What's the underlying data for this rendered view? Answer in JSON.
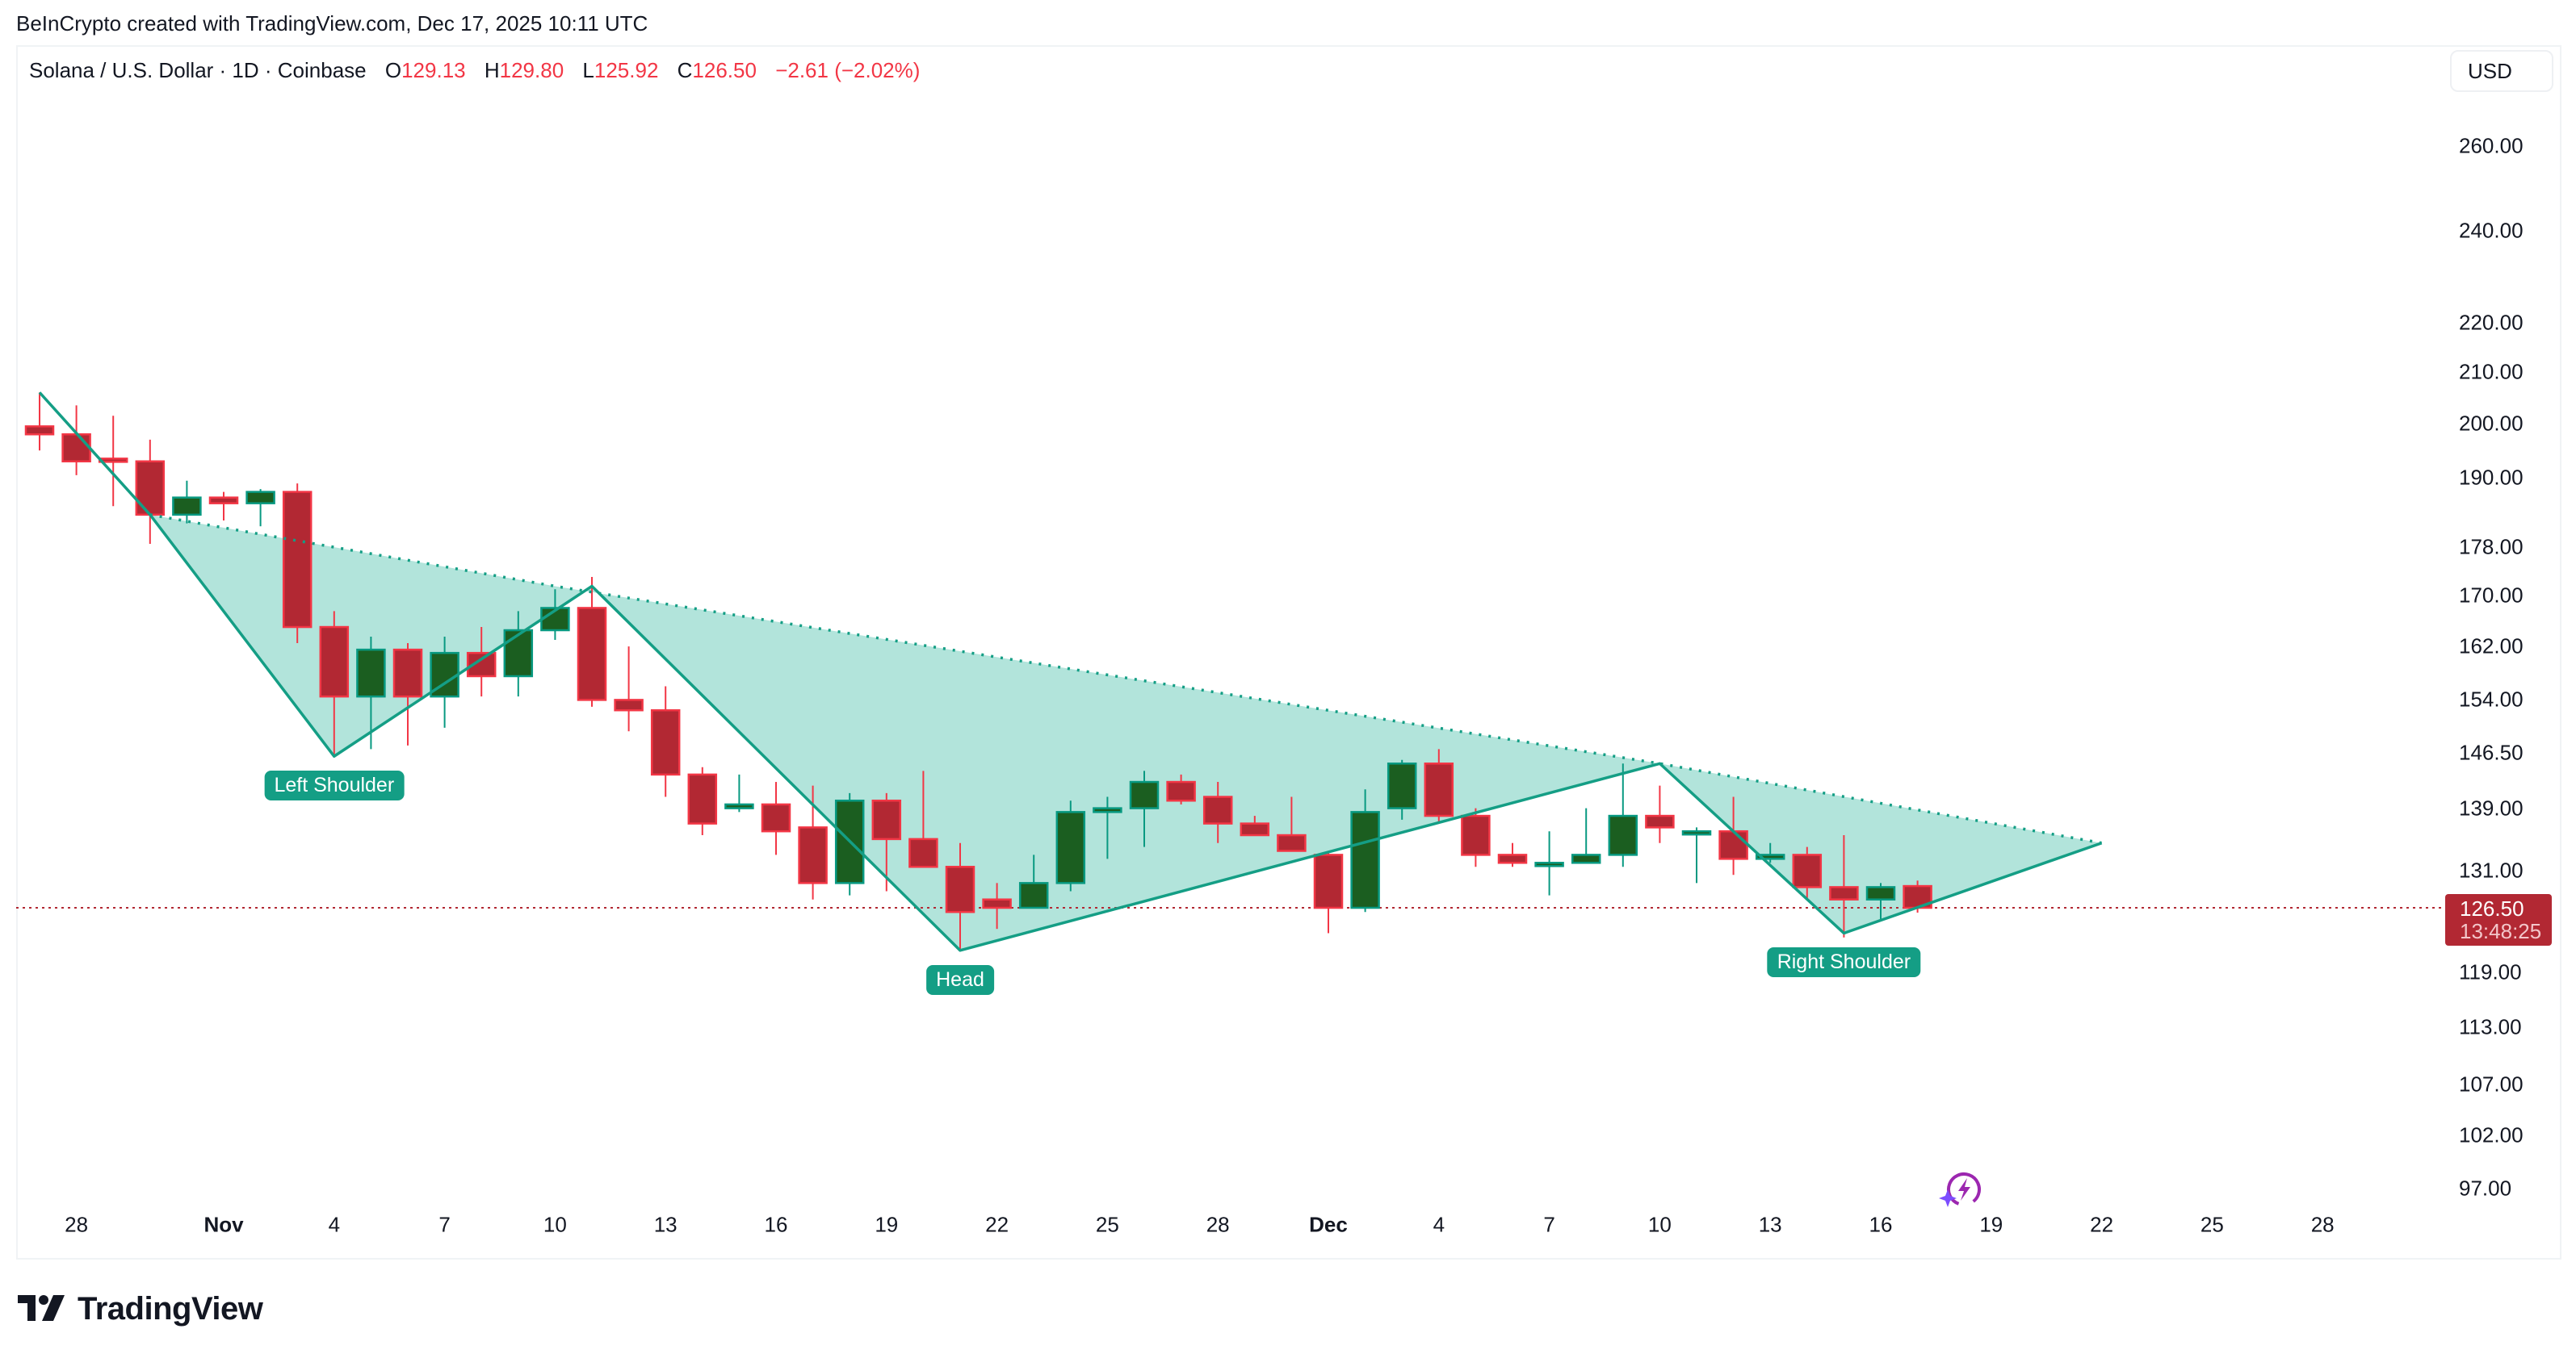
{
  "credit": "BeInCrypto created with TradingView.com, Dec 17, 2025 10:11 UTC",
  "legend": {
    "symbol": "Solana / U.S. Dollar · 1D · Coinbase",
    "o_label": "O",
    "o_value": "129.13",
    "h_label": "H",
    "h_value": "129.80",
    "l_label": "L",
    "l_value": "125.92",
    "c_label": "C",
    "c_value": "126.50",
    "change": "−2.61 (−2.02%)"
  },
  "currency_button": "USD",
  "current_price": {
    "value": "126.50",
    "countdown": "13:48:25"
  },
  "pattern_labels": {
    "left_shoulder": "Left Shoulder",
    "head": "Head",
    "right_shoulder": "Right Shoulder"
  },
  "brand": {
    "name": "TradingView"
  },
  "icons": {
    "watermark": "lightning-sparkle-icon",
    "logo": "tradingview-logo-icon"
  },
  "colors": {
    "up_body": "#1b5e20",
    "up_border": "#089981",
    "down_body": "#b22833",
    "down_border": "#f23645",
    "pattern_fill": "#b2e4db",
    "pattern_line": "#149e85",
    "current_price_line": "#b22833"
  },
  "chart_data": {
    "type": "candlestick",
    "title": "Solana / U.S. Dollar · 1D · Coinbase",
    "xlabel": "",
    "ylabel": "USD",
    "scale": "log",
    "ylim": [
      94,
      275
    ],
    "y_ticks": [
      "260.00",
      "240.00",
      "220.00",
      "210.00",
      "200.00",
      "190.00",
      "178.00",
      "170.00",
      "162.00",
      "154.00",
      "146.50",
      "139.00",
      "131.00",
      "119.00",
      "113.00",
      "107.00",
      "102.00",
      "97.00"
    ],
    "x_ticks": [
      {
        "label": "28",
        "index": 1
      },
      {
        "label": "Nov",
        "index": 5,
        "bold": true
      },
      {
        "label": "4",
        "index": 8
      },
      {
        "label": "7",
        "index": 11
      },
      {
        "label": "10",
        "index": 14
      },
      {
        "label": "13",
        "index": 17
      },
      {
        "label": "16",
        "index": 20
      },
      {
        "label": "19",
        "index": 23
      },
      {
        "label": "22",
        "index": 26
      },
      {
        "label": "25",
        "index": 29
      },
      {
        "label": "28",
        "index": 32
      },
      {
        "label": "Dec",
        "index": 35,
        "bold": true
      },
      {
        "label": "4",
        "index": 38
      },
      {
        "label": "7",
        "index": 41
      },
      {
        "label": "10",
        "index": 44
      },
      {
        "label": "13",
        "index": 47
      },
      {
        "label": "16",
        "index": 50
      },
      {
        "label": "19",
        "index": 53
      },
      {
        "label": "22",
        "index": 56
      },
      {
        "label": "25",
        "index": 59
      },
      {
        "label": "28",
        "index": 62
      }
    ],
    "candles": [
      {
        "date": "Oct 27",
        "o": 199.5,
        "h": 206.0,
        "l": 195.0,
        "c": 198.0
      },
      {
        "date": "Oct 28",
        "o": 198.0,
        "h": 203.5,
        "l": 190.5,
        "c": 193.0
      },
      {
        "date": "Oct 29",
        "o": 193.5,
        "h": 201.5,
        "l": 185.0,
        "c": 193.0
      },
      {
        "date": "Oct 30",
        "o": 193.0,
        "h": 197.0,
        "l": 178.5,
        "c": 183.5
      },
      {
        "date": "Oct 31",
        "o": 183.5,
        "h": 189.5,
        "l": 182.0,
        "c": 186.5
      },
      {
        "date": "Nov 1",
        "o": 186.5,
        "h": 187.5,
        "l": 182.5,
        "c": 185.5
      },
      {
        "date": "Nov 2",
        "o": 185.5,
        "h": 188.0,
        "l": 181.5,
        "c": 187.5
      },
      {
        "date": "Nov 3",
        "o": 187.5,
        "h": 189.0,
        "l": 162.5,
        "c": 165.0
      },
      {
        "date": "Nov 4",
        "o": 165.0,
        "h": 167.5,
        "l": 146.0,
        "c": 154.5
      },
      {
        "date": "Nov 5",
        "o": 154.5,
        "h": 163.5,
        "l": 147.0,
        "c": 161.5
      },
      {
        "date": "Nov 6",
        "o": 161.5,
        "h": 162.5,
        "l": 147.5,
        "c": 154.5
      },
      {
        "date": "Nov 7",
        "o": 154.5,
        "h": 163.5,
        "l": 150.0,
        "c": 161.0
      },
      {
        "date": "Nov 8",
        "o": 161.0,
        "h": 165.0,
        "l": 154.5,
        "c": 157.5
      },
      {
        "date": "Nov 9",
        "o": 157.5,
        "h": 167.5,
        "l": 154.5,
        "c": 164.5
      },
      {
        "date": "Nov 10",
        "o": 164.5,
        "h": 171.0,
        "l": 163.0,
        "c": 168.0
      },
      {
        "date": "Nov 11",
        "o": 168.0,
        "h": 173.0,
        "l": 153.0,
        "c": 154.0
      },
      {
        "date": "Nov 12",
        "o": 154.0,
        "h": 162.0,
        "l": 149.5,
        "c": 152.5
      },
      {
        "date": "Nov 13",
        "o": 152.5,
        "h": 156.0,
        "l": 140.5,
        "c": 143.5
      },
      {
        "date": "Nov 14",
        "o": 143.5,
        "h": 144.5,
        "l": 135.5,
        "c": 137.0
      },
      {
        "date": "Nov 15",
        "o": 139.0,
        "h": 143.5,
        "l": 138.5,
        "c": 139.5
      },
      {
        "date": "Nov 16",
        "o": 139.5,
        "h": 142.5,
        "l": 133.0,
        "c": 136.0
      },
      {
        "date": "Nov 17",
        "o": 136.5,
        "h": 142.0,
        "l": 127.5,
        "c": 129.5
      },
      {
        "date": "Nov 18",
        "o": 129.5,
        "h": 141.0,
        "l": 128.0,
        "c": 140.0
      },
      {
        "date": "Nov 19",
        "o": 140.0,
        "h": 141.0,
        "l": 128.5,
        "c": 135.0
      },
      {
        "date": "Nov 20",
        "o": 135.0,
        "h": 144.0,
        "l": 131.5,
        "c": 131.5
      },
      {
        "date": "Nov 21",
        "o": 131.5,
        "h": 134.5,
        "l": 121.5,
        "c": 126.0
      },
      {
        "date": "Nov 22",
        "o": 127.5,
        "h": 129.5,
        "l": 124.0,
        "c": 126.5
      },
      {
        "date": "Nov 23",
        "o": 126.5,
        "h": 133.0,
        "l": 126.5,
        "c": 129.5
      },
      {
        "date": "Nov 24",
        "o": 129.5,
        "h": 140.0,
        "l": 128.5,
        "c": 138.5
      },
      {
        "date": "Nov 25",
        "o": 138.5,
        "h": 140.5,
        "l": 132.5,
        "c": 139.0
      },
      {
        "date": "Nov 26",
        "o": 139.0,
        "h": 144.0,
        "l": 134.0,
        "c": 142.5
      },
      {
        "date": "Nov 27",
        "o": 142.5,
        "h": 143.5,
        "l": 139.5,
        "c": 140.0
      },
      {
        "date": "Nov 28",
        "o": 140.5,
        "h": 142.5,
        "l": 134.5,
        "c": 137.0
      },
      {
        "date": "Nov 29",
        "o": 137.0,
        "h": 138.0,
        "l": 135.5,
        "c": 135.5
      },
      {
        "date": "Nov 30",
        "o": 135.5,
        "h": 140.5,
        "l": 133.5,
        "c": 133.5
      },
      {
        "date": "Dec 1",
        "o": 133.0,
        "h": 133.5,
        "l": 123.5,
        "c": 126.5
      },
      {
        "date": "Dec 2",
        "o": 126.5,
        "h": 141.5,
        "l": 126.0,
        "c": 138.5
      },
      {
        "date": "Dec 3",
        "o": 139.0,
        "h": 145.5,
        "l": 137.5,
        "c": 145.0
      },
      {
        "date": "Dec 4",
        "o": 145.0,
        "h": 147.0,
        "l": 137.0,
        "c": 138.0
      },
      {
        "date": "Dec 5",
        "o": 138.0,
        "h": 139.0,
        "l": 131.5,
        "c": 133.0
      },
      {
        "date": "Dec 6",
        "o": 133.0,
        "h": 134.5,
        "l": 131.5,
        "c": 132.0
      },
      {
        "date": "Dec 7",
        "o": 132.0,
        "h": 136.0,
        "l": 128.0,
        "c": 132.0
      },
      {
        "date": "Dec 8",
        "o": 132.0,
        "h": 139.0,
        "l": 132.0,
        "c": 133.0
      },
      {
        "date": "Dec 9",
        "o": 133.0,
        "h": 145.0,
        "l": 131.5,
        "c": 138.0
      },
      {
        "date": "Dec 10",
        "o": 138.0,
        "h": 142.0,
        "l": 134.5,
        "c": 136.5
      },
      {
        "date": "Dec 11",
        "o": 136.0,
        "h": 136.5,
        "l": 129.5,
        "c": 136.0
      },
      {
        "date": "Dec 12",
        "o": 136.0,
        "h": 140.5,
        "l": 130.5,
        "c": 132.5
      },
      {
        "date": "Dec 13",
        "o": 132.5,
        "h": 134.5,
        "l": 132.0,
        "c": 133.0
      },
      {
        "date": "Dec 14",
        "o": 133.0,
        "h": 134.0,
        "l": 127.5,
        "c": 129.0
      },
      {
        "date": "Dec 15",
        "o": 129.0,
        "h": 135.5,
        "l": 123.0,
        "c": 127.5
      },
      {
        "date": "Dec 16",
        "o": 127.5,
        "h": 129.5,
        "l": 125.0,
        "c": 129.0
      },
      {
        "date": "Dec 17",
        "o": 129.13,
        "h": 129.8,
        "l": 125.92,
        "c": 126.5
      }
    ],
    "annotations": [
      {
        "type": "label",
        "text": "Left Shoulder",
        "index": 8,
        "price": 146.0
      },
      {
        "type": "label",
        "text": "Head",
        "index": 25,
        "price": 121.5
      },
      {
        "type": "label",
        "text": "Right Shoulder",
        "index": 49,
        "price": 123.5
      },
      {
        "type": "neckline-dotted",
        "points": [
          [
            3,
            183.5
          ],
          [
            14,
            171.5
          ],
          [
            44,
            145.0
          ],
          [
            56,
            134.5
          ]
        ]
      },
      {
        "type": "pattern-outline",
        "points": [
          [
            0,
            206.0
          ],
          [
            3,
            183.5
          ],
          [
            8,
            146.0
          ],
          [
            15,
            171.5
          ],
          [
            25,
            121.5
          ],
          [
            44,
            145.0
          ],
          [
            49,
            123.5
          ],
          [
            56,
            134.5
          ]
        ]
      }
    ],
    "current_price": 126.5,
    "grid": false,
    "legend_position": "top-left"
  }
}
